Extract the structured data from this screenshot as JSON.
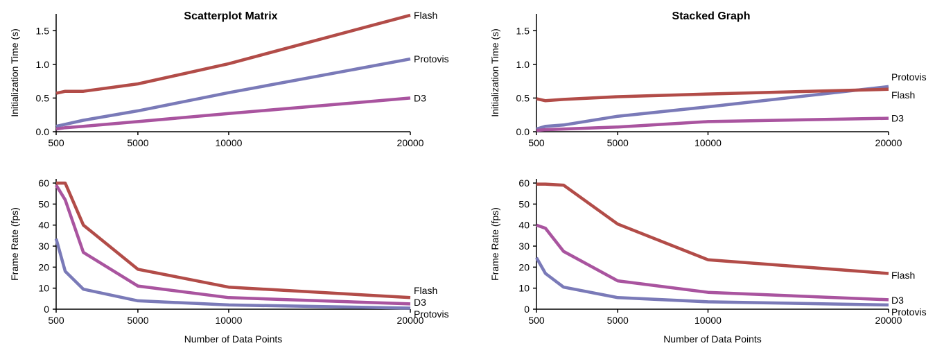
{
  "colors": {
    "Flash": "#b24c48",
    "Protovis": "#7a7ab8",
    "D3": "#a9549f"
  },
  "chart_data": [
    {
      "id": "sm-init",
      "type": "line",
      "title": "Scatterplot Matrix",
      "xlabel": "",
      "ylabel": "Initialization Time (s)",
      "xlim": [
        500,
        20000
      ],
      "ylim": [
        0,
        1.75
      ],
      "xticks": [
        500,
        5000,
        10000,
        20000
      ],
      "xtick_labels": [
        "500",
        "5000",
        "10000",
        "20000"
      ],
      "yticks": [
        0,
        0.5,
        1.0,
        1.5
      ],
      "ytick_labels": [
        "0.0",
        "0.5",
        "1.0",
        "1.5"
      ],
      "grid": false,
      "x": [
        500,
        1000,
        2000,
        5000,
        10000,
        20000
      ],
      "series": [
        {
          "name": "Flash",
          "values": [
            0.57,
            0.6,
            0.6,
            0.71,
            1.01,
            1.73
          ]
        },
        {
          "name": "Protovis",
          "values": [
            0.08,
            0.11,
            0.17,
            0.31,
            0.58,
            1.08
          ]
        },
        {
          "name": "D3",
          "values": [
            0.04,
            0.06,
            0.08,
            0.15,
            0.27,
            0.5
          ]
        }
      ],
      "legend_order": [
        "Flash",
        "Protovis",
        "D3"
      ]
    },
    {
      "id": "sg-init",
      "type": "line",
      "title": "Stacked Graph",
      "xlabel": "",
      "ylabel": "Initialization Time (s)",
      "xlim": [
        500,
        20000
      ],
      "ylim": [
        0,
        1.75
      ],
      "xticks": [
        500,
        5000,
        10000,
        20000
      ],
      "xtick_labels": [
        "500",
        "5000",
        "10000",
        "20000"
      ],
      "yticks": [
        0,
        0.5,
        1.0,
        1.5
      ],
      "ytick_labels": [
        "0.0",
        "0.5",
        "1.0",
        "1.5"
      ],
      "grid": false,
      "x": [
        500,
        1000,
        2000,
        5000,
        10000,
        20000
      ],
      "series": [
        {
          "name": "Flash",
          "values": [
            0.49,
            0.46,
            0.48,
            0.52,
            0.56,
            0.63
          ]
        },
        {
          "name": "Protovis",
          "values": [
            0.04,
            0.08,
            0.1,
            0.23,
            0.37,
            0.67
          ]
        },
        {
          "name": "D3",
          "values": [
            0.02,
            0.03,
            0.04,
            0.07,
            0.15,
            0.2
          ]
        }
      ],
      "legend_order": [
        "Protovis",
        "Flash",
        "D3"
      ]
    },
    {
      "id": "sm-fps",
      "type": "line",
      "title": "",
      "xlabel": "Number of Data Points",
      "ylabel": "Frame Rate (fps)",
      "xlim": [
        500,
        20000
      ],
      "ylim": [
        0,
        62
      ],
      "xticks": [
        500,
        5000,
        10000,
        20000
      ],
      "xtick_labels": [
        "500",
        "5000",
        "10000",
        "20000"
      ],
      "yticks": [
        0,
        10,
        20,
        30,
        40,
        50,
        60
      ],
      "ytick_labels": [
        "0",
        "10",
        "20",
        "30",
        "40",
        "50",
        "60"
      ],
      "grid": false,
      "x": [
        500,
        1000,
        2000,
        5000,
        10000,
        20000
      ],
      "series": [
        {
          "name": "Flash",
          "values": [
            60,
            60,
            40,
            19,
            10.5,
            5.5
          ]
        },
        {
          "name": "Protovis",
          "values": [
            33.5,
            18,
            9.5,
            4,
            2,
            0.5
          ]
        },
        {
          "name": "D3",
          "values": [
            59,
            52,
            27,
            11,
            5.5,
            2.5
          ]
        }
      ],
      "legend_order": [
        "Flash",
        "D3",
        "Protovis"
      ]
    },
    {
      "id": "sg-fps",
      "type": "line",
      "title": "",
      "xlabel": "Number of Data Points",
      "ylabel": "Frame Rate (fps)",
      "xlim": [
        500,
        20000
      ],
      "ylim": [
        0,
        62
      ],
      "xticks": [
        500,
        5000,
        10000,
        20000
      ],
      "xtick_labels": [
        "500",
        "5000",
        "10000",
        "20000"
      ],
      "yticks": [
        0,
        10,
        20,
        30,
        40,
        50,
        60
      ],
      "ytick_labels": [
        "0",
        "10",
        "20",
        "30",
        "40",
        "50",
        "60"
      ],
      "grid": false,
      "x": [
        500,
        1000,
        2000,
        5000,
        10000,
        20000
      ],
      "series": [
        {
          "name": "Flash",
          "values": [
            59.5,
            59.5,
            59,
            40.5,
            23.5,
            17
          ]
        },
        {
          "name": "Protovis",
          "values": [
            24.5,
            17,
            10.5,
            5.5,
            3.5,
            2
          ]
        },
        {
          "name": "D3",
          "values": [
            40,
            38.5,
            27.5,
            13.5,
            8,
            4.5
          ]
        }
      ],
      "legend_order": [
        "Flash",
        "D3",
        "Protovis"
      ]
    }
  ]
}
